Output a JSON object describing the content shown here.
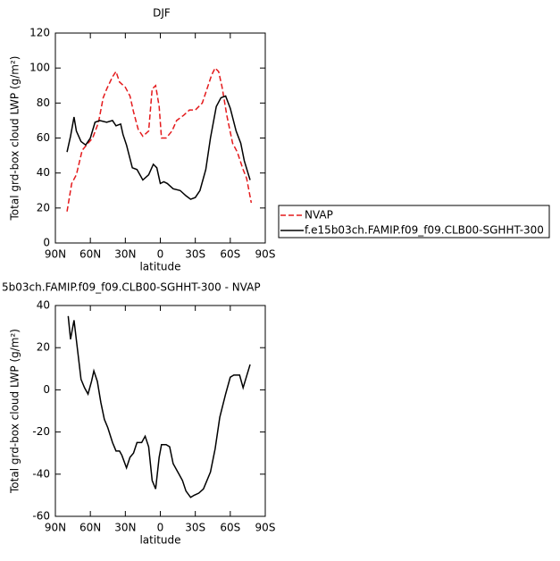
{
  "chart_data": [
    {
      "type": "line",
      "title": "DJF",
      "xlabel": "latitude",
      "ylabel": "Total grd-box cloud LWP (g/m²)",
      "xlim": [
        90,
        -90
      ],
      "xticks": [
        {
          "value": 90,
          "label": "90N"
        },
        {
          "value": 60,
          "label": "60N"
        },
        {
          "value": 30,
          "label": "30N"
        },
        0,
        {
          "value": -30,
          "label": "30S"
        },
        {
          "value": -60,
          "label": "60S"
        },
        {
          "value": -90,
          "label": "90S"
        }
      ],
      "ylim": [
        0,
        120
      ],
      "yticks": [
        0,
        20,
        40,
        60,
        80,
        100,
        120
      ],
      "series": [
        {
          "name": "NVAP",
          "color": "#e41a1c",
          "line_style": "dashed",
          "x": [
            80,
            76,
            72,
            67,
            62,
            58,
            53,
            49,
            46,
            41,
            38,
            35,
            30,
            26,
            23,
            19,
            15,
            10,
            7,
            4,
            1,
            -1,
            -5,
            -10,
            -14,
            -20,
            -25,
            -30,
            -36,
            -40,
            -44,
            -47,
            -50,
            -53,
            -57,
            -62,
            -66,
            -71,
            -74,
            -78
          ],
          "values": [
            18,
            34,
            39,
            53,
            57,
            60,
            69,
            83,
            88,
            95,
            98,
            92,
            89,
            84,
            75,
            65,
            61,
            64,
            88,
            90,
            78,
            60,
            60,
            64,
            70,
            73,
            76,
            76,
            80,
            88,
            96,
            100,
            98,
            89,
            73,
            57,
            52,
            42,
            37,
            23
          ]
        },
        {
          "name": "f.e15b03ch.FAMIP.f09_f09.CLB00-SGHHT-300",
          "color": "#000000",
          "line_style": "solid",
          "x": [
            80,
            77,
            74,
            72,
            68,
            64,
            60,
            56,
            52,
            46,
            41,
            38,
            34,
            32,
            29,
            24,
            20,
            15,
            10,
            6,
            3,
            0,
            -3,
            -6,
            -11,
            -17,
            -22,
            -26,
            -30,
            -34,
            -39,
            -43,
            -48,
            -52,
            -56,
            -60,
            -65,
            -69,
            -72,
            -77
          ],
          "values": [
            52,
            61,
            72,
            64,
            58,
            56,
            60,
            69,
            70,
            69,
            70,
            67,
            68,
            62,
            56,
            43,
            42,
            36,
            39,
            45,
            43,
            34,
            35,
            34,
            31,
            30,
            27,
            25,
            26,
            30,
            42,
            60,
            78,
            83,
            84,
            77,
            64,
            57,
            47,
            36
          ]
        }
      ]
    },
    {
      "type": "line",
      "title": "5b03ch.FAMIP.f09_f09.CLB00-SGHHT-300  -  NVAP",
      "xlabel": "latitude",
      "ylabel": "Total grd-box cloud LWP (g/m²)",
      "xlim": [
        90,
        -90
      ],
      "xticks": [
        {
          "value": 90,
          "label": "90N"
        },
        {
          "value": 60,
          "label": "60N"
        },
        {
          "value": 30,
          "label": "30N"
        },
        0,
        {
          "value": -30,
          "label": "30S"
        },
        {
          "value": -60,
          "label": "60S"
        },
        {
          "value": -90,
          "label": "90S"
        }
      ],
      "ylim": [
        -60,
        40
      ],
      "yticks": [
        -60,
        -40,
        -20,
        0,
        20,
        40
      ],
      "series": [
        {
          "color": "#000000",
          "line_style": "solid",
          "x": [
            79,
            77,
            74,
            71,
            68,
            65,
            62,
            59,
            57,
            54,
            51,
            48,
            45,
            41,
            38,
            35,
            33,
            29,
            26,
            23,
            20,
            16,
            13,
            10,
            7,
            4,
            1,
            -1,
            -5,
            -8,
            -11,
            -16,
            -19,
            -22,
            -26,
            -29,
            -33,
            -37,
            -43,
            -47,
            -51,
            -56,
            -60,
            -63,
            -68,
            -71,
            -77
          ],
          "values": [
            35,
            24,
            33,
            19,
            5,
            1,
            -2,
            4,
            9,
            4,
            -6,
            -14,
            -18,
            -25,
            -29,
            -29,
            -31,
            -37,
            -32,
            -30,
            -25,
            -25,
            -22,
            -27,
            -43,
            -47,
            -32,
            -26,
            -26,
            -27,
            -35,
            -40,
            -43,
            -48,
            -51,
            -50,
            -49,
            -47,
            -39,
            -28,
            -13,
            -2,
            6,
            7,
            7,
            1,
            12
          ]
        }
      ]
    }
  ]
}
